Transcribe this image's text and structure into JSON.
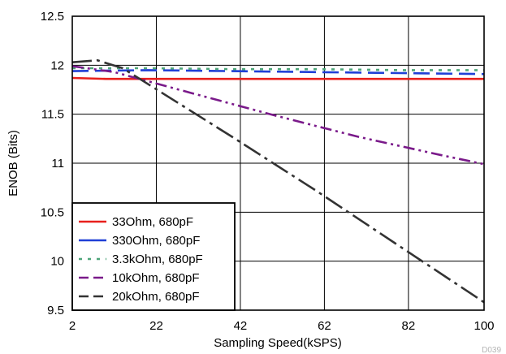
{
  "chart_data": {
    "type": "line",
    "title": "",
    "xlabel": "Sampling Speed(kSPS)",
    "ylabel": "ENOB (Bits)",
    "xlim": [
      2,
      100
    ],
    "ylim": [
      9.5,
      12.5
    ],
    "x_ticks": [
      "2",
      "22",
      "42",
      "62",
      "82",
      "100"
    ],
    "y_ticks": [
      "9.5",
      "10",
      "10.5",
      "11",
      "11.5",
      "12",
      "12.5"
    ],
    "grid": true,
    "legend_position": "bottom-left",
    "series": [
      {
        "name": "33Ohm, 680pF",
        "color": "#e8201c",
        "line_style": "solid",
        "x": [
          2,
          10,
          20,
          40,
          60,
          80,
          100
        ],
        "y": [
          11.87,
          11.86,
          11.86,
          11.86,
          11.86,
          11.86,
          11.86
        ]
      },
      {
        "name": "330Ohm, 680pF",
        "color": "#1f3fd6",
        "line_style": "long-dash",
        "x": [
          2,
          20,
          40,
          60,
          80,
          100
        ],
        "y": [
          11.94,
          11.95,
          11.94,
          11.93,
          11.92,
          11.91
        ]
      },
      {
        "name": "3.3kOhm, 680pF",
        "color": "#4fa67a",
        "line_style": "dot",
        "x": [
          2,
          20,
          40,
          60,
          80,
          100
        ],
        "y": [
          11.97,
          11.97,
          11.96,
          11.96,
          11.95,
          11.95
        ]
      },
      {
        "name": "10kOhm, 680pF",
        "color": "#7a1a8a",
        "line_style": "dash-dot-dot",
        "x": [
          2,
          12,
          30,
          50,
          70,
          90,
          100
        ],
        "y": [
          11.99,
          11.93,
          11.72,
          11.49,
          11.27,
          11.08,
          10.99
        ]
      },
      {
        "name": "20kOhm, 680pF",
        "color": "#333333",
        "line_style": "dash-dot",
        "x": [
          2,
          8,
          14,
          40,
          60,
          80,
          100
        ],
        "y": [
          12.03,
          12.05,
          11.97,
          11.27,
          10.72,
          10.15,
          9.58
        ]
      }
    ],
    "source_tag": "D039"
  }
}
